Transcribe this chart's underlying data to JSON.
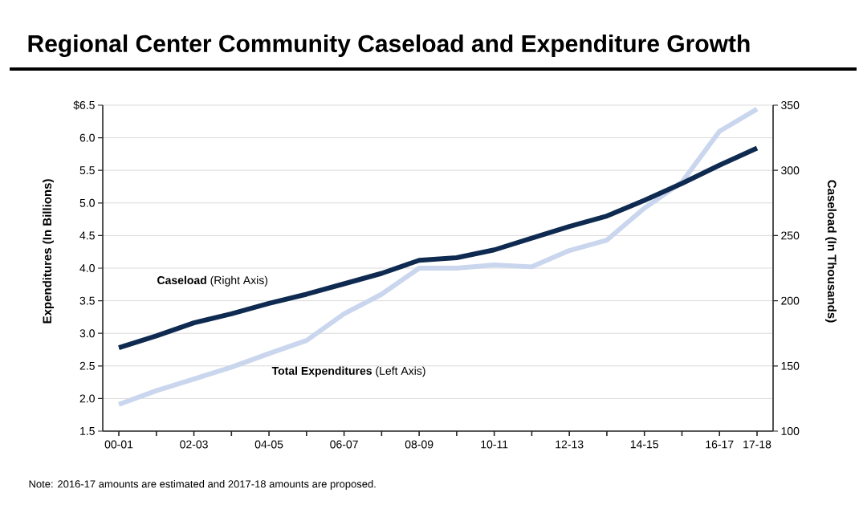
{
  "chart_data": {
    "type": "line",
    "title": "Regional Center Community Caseload and Expenditure Growth",
    "ylabel": "Expenditures (In Billions)",
    "y2label": "Caseload (In Thousands)",
    "categories": [
      "00-01",
      null,
      "02-03",
      null,
      "04-05",
      null,
      "06-07",
      null,
      "08-09",
      null,
      "10-11",
      null,
      "12-13",
      null,
      "14-15",
      null,
      "16-17",
      "17-18"
    ],
    "series": [
      {
        "name": "**Caseload** (Right Axis)",
        "color": "#0f2a50",
        "axis": "y2",
        "values": [
          164,
          173,
          183,
          190,
          198,
          205,
          213,
          221,
          231,
          233,
          239,
          248,
          257,
          265,
          277,
          290,
          304,
          317
        ]
      },
      {
        "name": "**Total Expenditures** (Left Axis)",
        "color": "#c9d6ee",
        "values": [
          1.91,
          2.12,
          2.3,
          2.48,
          2.69,
          2.89,
          3.3,
          3.6,
          4.0,
          4.0,
          4.05,
          4.02,
          4.27,
          4.43,
          4.92,
          5.32,
          6.1,
          6.44
        ]
      }
    ],
    "ylim": [
      1.5,
      6.5
    ],
    "yticks": [
      {
        "value": 1.5,
        "label": "1.5"
      },
      {
        "value": 2,
        "label": "2.0"
      },
      {
        "value": 2.5,
        "label": "2.5"
      },
      {
        "value": 3,
        "label": "3.0"
      },
      {
        "value": 3.5,
        "label": "3.5"
      },
      {
        "value": 4,
        "label": "4.0"
      },
      {
        "value": 4.5,
        "label": "4.5"
      },
      {
        "value": 5,
        "label": "5.0"
      },
      {
        "value": 5.5,
        "label": "5.5"
      },
      {
        "value": 6,
        "label": "6.0"
      },
      {
        "value": 6.5,
        "label": "$6.5"
      }
    ],
    "y2lim": [
      100,
      350
    ],
    "y2ticks": [
      100,
      150,
      200,
      250,
      300,
      350
    ],
    "grid": "y",
    "legend": false,
    "annotations": [
      "Note: 2016-17 amounts are estimated and 2017-18 amounts are proposed."
    ]
  }
}
